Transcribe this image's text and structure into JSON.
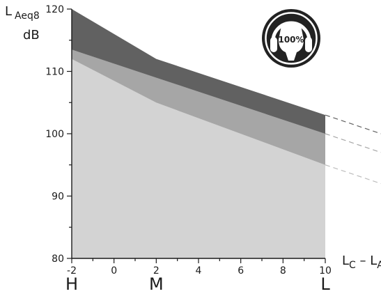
{
  "chart_data": {
    "type": "area",
    "xlabel": {
      "main": "L",
      "sub1": "C",
      "sep": " – ",
      "main2": "L",
      "sub2": "A"
    },
    "ylabel": {
      "main": "L",
      "sub": "Aeq8",
      "unit": "dB"
    },
    "xlim": [
      -2,
      10
    ],
    "ylim": [
      80,
      120
    ],
    "x_ticks": [
      -2,
      0,
      2,
      4,
      6,
      8,
      10
    ],
    "y_ticks": [
      80,
      90,
      100,
      110,
      120
    ],
    "category_labels": [
      {
        "label": "H",
        "x": -2
      },
      {
        "label": "M",
        "x": 2
      },
      {
        "label": "L",
        "x": 10
      }
    ],
    "x": [
      -2,
      2,
      10
    ],
    "series": [
      {
        "color": "#d3d3d3",
        "values": [
          112,
          105,
          95
        ],
        "extrapolated_end": 92
      },
      {
        "color": "#a6a6a6",
        "values": [
          113.5,
          109,
          100
        ],
        "extrapolated_end": 97
      },
      {
        "color": "#616161",
        "values": [
          120,
          112,
          103
        ],
        "extrapolated_end": 100
      }
    ],
    "grid": false,
    "badge": {
      "text": "100%",
      "icon": "earmuffs-head-icon"
    }
  }
}
